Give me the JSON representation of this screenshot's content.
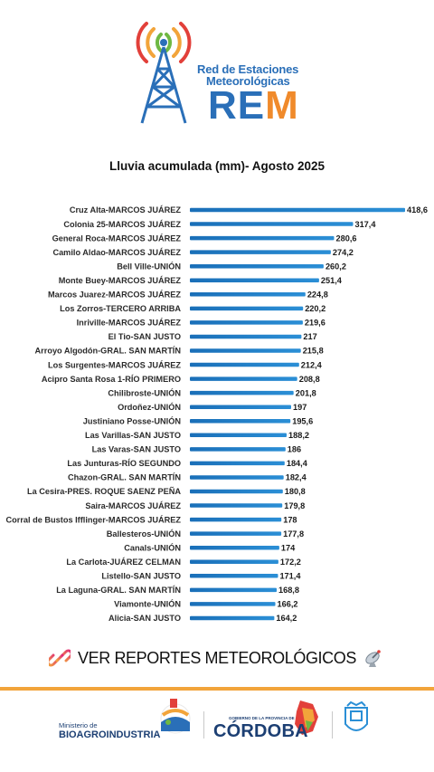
{
  "header": {
    "logo_line1": "Red de Estaciones",
    "logo_line2": "Meteorológicas",
    "logo_abbrev_r": "RE",
    "logo_abbrev_m": "M",
    "colors": {
      "brand_blue": "#2a6fb8",
      "brand_orange": "#f08a2b"
    }
  },
  "chart_title": "Lluvia acumulada (mm)- Agosto 2025",
  "chart_data": {
    "type": "bar",
    "orientation": "horizontal",
    "title": "Lluvia acumulada (mm)- Agosto 2025",
    "xlim": [
      0,
      418.6
    ],
    "grid": false,
    "bar_color": "#2b8fd6",
    "categories": [
      "Cruz Alta-MARCOS JUÁREZ",
      "Colonia 25-MARCOS JUÁREZ",
      "General Roca-MARCOS JUÁREZ",
      "Camilo Aldao-MARCOS JUÁREZ",
      "Bell Ville-UNIÓN",
      "Monte Buey-MARCOS JUÁREZ",
      "Marcos Juarez-MARCOS JUÁREZ",
      "Los Zorros-TERCERO ARRIBA",
      "Inriville-MARCOS JUÁREZ",
      "El Tio-SAN JUSTO",
      "Arroyo Algodón-GRAL. SAN MARTÍN",
      "Los Surgentes-MARCOS JUÁREZ",
      "Acipro Santa Rosa 1-RÍO PRIMERO",
      "Chilibroste-UNIÓN",
      "Ordoñez-UNIÓN",
      "Justiniano Posse-UNIÓN",
      "Las Varillas-SAN JUSTO",
      "Las Varas-SAN JUSTO",
      "Las Junturas-RÍO SEGUNDO",
      "Chazon-GRAL. SAN MARTÍN",
      "La Cesira-PRES. ROQUE SAENZ PEÑA",
      "Saira-MARCOS JUÁREZ",
      "Corral de Bustos Ifflinger-MARCOS JUÁREZ",
      "Ballesteros-UNIÓN",
      "Canals-UNIÓN",
      "La Carlota-JUÁREZ CELMAN",
      "Listello-SAN JUSTO",
      "La Laguna-GRAL. SAN MARTÍN",
      "Viamonte-UNIÓN",
      "Alicia-SAN JUSTO"
    ],
    "values": [
      418.6,
      317.4,
      280.6,
      274.2,
      260.2,
      251.4,
      224.8,
      220.2,
      219.6,
      217,
      215.8,
      212.4,
      208.8,
      201.8,
      197,
      195.6,
      188.2,
      186,
      184.4,
      182.4,
      180.8,
      179.8,
      178,
      177.8,
      174,
      172.2,
      171.4,
      168.8,
      166.2,
      164.2
    ],
    "value_labels": [
      "418,6",
      "317,4",
      "280,6",
      "274,2",
      "260,2",
      "251,4",
      "224,8",
      "220,2",
      "219,6",
      "217",
      "215,8",
      "212,4",
      "208,8",
      "201,8",
      "197",
      "195,6",
      "188,2",
      "186",
      "184,4",
      "182,4",
      "180,8",
      "179,8",
      "178",
      "177,8",
      "174",
      "172,2",
      "171,4",
      "168,8",
      "166,2",
      "164,2"
    ]
  },
  "reports_link": {
    "label": "VER REPORTES METEOROLÓGICOS",
    "icons": [
      "link-icon",
      "satellite-dish-icon"
    ]
  },
  "footer": {
    "ministerio": "Ministerio de",
    "bioagro": "BIOAGROINDUSTRIA",
    "gobierno": "GOBIERNO DE LA PROVINCIA DE",
    "cordoba": "CÓRDOBA",
    "accent_color": "#f2a43a"
  }
}
